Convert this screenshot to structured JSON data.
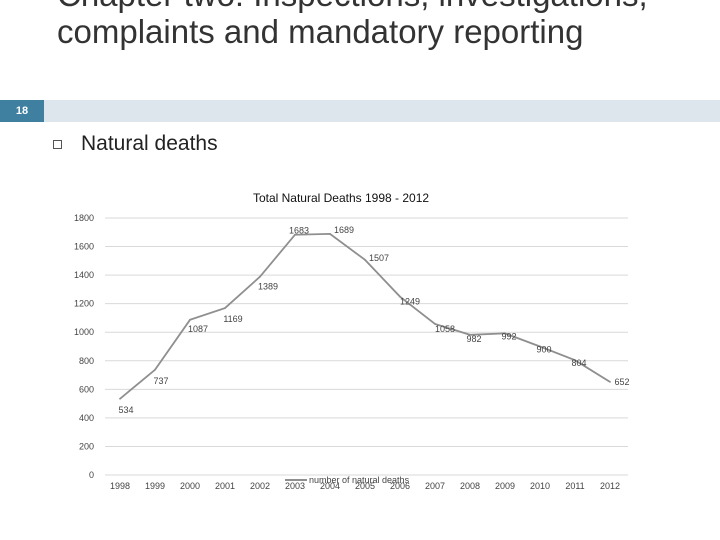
{
  "slide": {
    "number": "18",
    "title": "Chapter two: Inspections, investigations, complaints and mandatory reporting",
    "bullet": "Natural deaths"
  },
  "colors": {
    "accent": "#3f7fa0",
    "line": "#8f8f8f",
    "grid": "#d9d9d9"
  },
  "chart_data": {
    "type": "line",
    "title": "Total Natural Deaths 1998 - 2012",
    "xlabel": "",
    "ylabel": "",
    "categories": [
      "1998",
      "1999",
      "2000",
      "2001",
      "2002",
      "2003",
      "2004",
      "2005",
      "2006",
      "2007",
      "2008",
      "2009",
      "2010",
      "2011",
      "2012"
    ],
    "series": [
      {
        "name": "number of natural deaths",
        "values": [
          534,
          737,
          1087,
          1169,
          1389,
          1683,
          1689,
          1507,
          1249,
          1058,
          982,
          992,
          900,
          804,
          652
        ]
      }
    ],
    "ylim": [
      0,
      1800
    ],
    "yticks": [
      0,
      200,
      400,
      600,
      800,
      1000,
      1200,
      1400,
      1600,
      1800
    ],
    "grid": true,
    "legend": "bottom-center"
  }
}
